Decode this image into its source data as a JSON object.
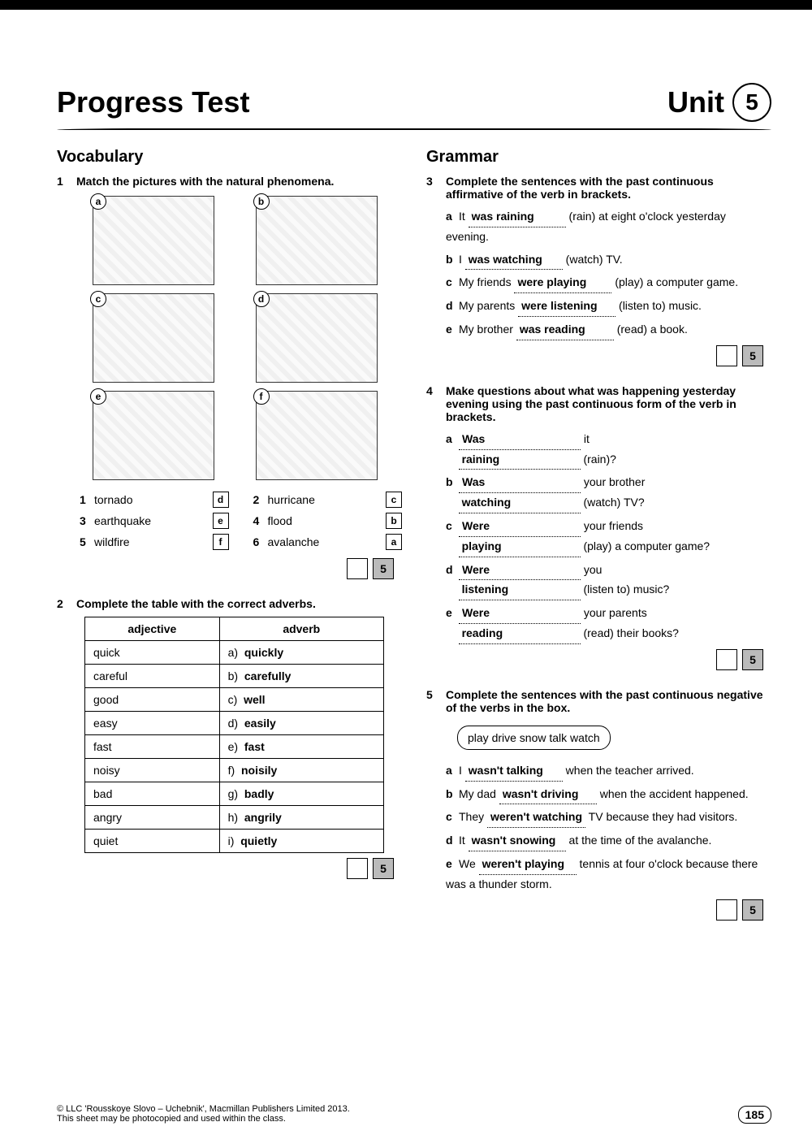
{
  "header": {
    "title": "Progress Test",
    "unit_label": "Unit",
    "unit_num": "5"
  },
  "vocab_title": "Vocabulary",
  "grammar_title": "Grammar",
  "ex1": {
    "instr": "Match the pictures with the natural phenomena.",
    "pics": [
      "a",
      "b",
      "c",
      "d",
      "e",
      "f"
    ],
    "items": [
      {
        "n": "1",
        "word": "tornado",
        "ans": "d"
      },
      {
        "n": "2",
        "word": "hurricane",
        "ans": "c"
      },
      {
        "n": "3",
        "word": "earthquake",
        "ans": "e"
      },
      {
        "n": "4",
        "word": "flood",
        "ans": "b"
      },
      {
        "n": "5",
        "word": "wildfire",
        "ans": "f"
      },
      {
        "n": "6",
        "word": "avalanche",
        "ans": "a"
      }
    ],
    "score": "5"
  },
  "ex2": {
    "instr": "Complete the table with the correct adverbs.",
    "head": [
      "adjective",
      "adverb"
    ],
    "rows": [
      [
        "quick",
        "a)",
        "quickly"
      ],
      [
        "careful",
        "b)",
        "carefully"
      ],
      [
        "good",
        "c)",
        "well"
      ],
      [
        "easy",
        "d)",
        "easily"
      ],
      [
        "fast",
        "e)",
        "fast"
      ],
      [
        "noisy",
        "f)",
        "noisily"
      ],
      [
        "bad",
        "g)",
        "badly"
      ],
      [
        "angry",
        "h)",
        "angrily"
      ],
      [
        "quiet",
        "i)",
        "quietly"
      ]
    ],
    "score": "5"
  },
  "ex3": {
    "instr": "Complete the sentences with the past continuous affirmative of the verb in brackets.",
    "items": [
      {
        "l": "a",
        "pre": "It ",
        "ans": "was raining",
        "post": " (rain) at eight o'clock yesterday evening."
      },
      {
        "l": "b",
        "pre": "I ",
        "ans": "was watching",
        "post": " (watch) TV."
      },
      {
        "l": "c",
        "pre": "My friends ",
        "ans": "were playing",
        "post": " (play) a computer game."
      },
      {
        "l": "d",
        "pre": "My parents ",
        "ans": "were listening",
        "post": " (listen to) music."
      },
      {
        "l": "e",
        "pre": "My brother ",
        "ans": "was reading",
        "post": " (read) a book."
      }
    ],
    "score": "5"
  },
  "ex4": {
    "instr": "Make questions about what was happening yesterday evening using the past continuous form of the verb in brackets.",
    "items": [
      {
        "l": "a",
        "a1": "Was",
        "post1": " it",
        "a2": "raining",
        "post2": " (rain)?"
      },
      {
        "l": "b",
        "a1": "Was",
        "post1": " your brother",
        "a2": "watching",
        "post2": " (watch) TV?"
      },
      {
        "l": "c",
        "a1": "Were",
        "post1": " your friends",
        "a2": "playing",
        "post2": " (play) a computer game?"
      },
      {
        "l": "d",
        "a1": "Were",
        "post1": " you",
        "a2": "listening",
        "post2": " (listen to) music?"
      },
      {
        "l": "e",
        "a1": "Were",
        "post1": " your parents",
        "a2": "reading",
        "post2": " (read) their books?"
      }
    ],
    "score": "5"
  },
  "ex5": {
    "instr": "Complete the sentences with the past continuous negative of the verbs in the box.",
    "box": "play   drive   snow   talk   watch",
    "items": [
      {
        "l": "a",
        "pre": "I ",
        "ans": "wasn't talking",
        "post": " when the teacher arrived."
      },
      {
        "l": "b",
        "pre": "My dad ",
        "ans": "wasn't driving",
        "post": " when the accident happened."
      },
      {
        "l": "c",
        "pre": "They ",
        "ans": "weren't watching",
        "post": " TV because they had visitors."
      },
      {
        "l": "d",
        "pre": "It ",
        "ans": "wasn't snowing",
        "post": " at the time of the avalanche."
      },
      {
        "l": "e",
        "pre": "We ",
        "ans": "weren't playing",
        "post": " tennis at four o'clock because there was a thunder storm."
      }
    ],
    "score": "5"
  },
  "footer": {
    "copyright": "© LLC 'Rousskoye Slovo – Uchebnik', Macmillan Publishers Limited 2013.",
    "note": "This sheet may be photocopied and used within the class.",
    "page": "185"
  }
}
